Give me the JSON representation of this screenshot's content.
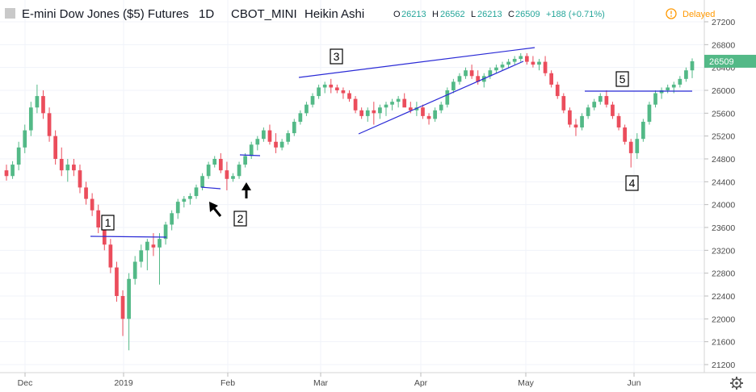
{
  "header": {
    "title": "E-mini Dow Jones ($5) Futures",
    "interval": "1D",
    "exchange": "CBOT_MINI",
    "chart_style": "Heikin Ashi",
    "ohlc": {
      "o_label": "O",
      "o": "26213",
      "h_label": "H",
      "h": "26562",
      "l_label": "L",
      "l": "26213",
      "c_label": "C",
      "c": "26509",
      "change": "+188 (+0.71%)"
    },
    "status": "Delayed",
    "status_icon": "clock-icon"
  },
  "price_axis": {
    "labels": [
      "27200",
      "26800",
      "26400",
      "26000",
      "25600",
      "25200",
      "24800",
      "24400",
      "24000",
      "23600",
      "23200",
      "22800",
      "22400",
      "22000",
      "21600",
      "21200"
    ],
    "last_price": "26509"
  },
  "time_axis": {
    "labels": [
      "Dec",
      "2019",
      "Feb",
      "Mar",
      "Apr",
      "May",
      "Jun"
    ]
  },
  "settings_icon": "gear-icon",
  "colors": {
    "up": "#53b987",
    "down": "#eb4d5c",
    "annotation_line": "#2a2ad6",
    "price_tag": "#53b987"
  },
  "chart_data": {
    "type": "candlestick",
    "style": "Heikin Ashi",
    "ylim": [
      21100,
      27400
    ],
    "x_ticks": [
      "Dec",
      "2019",
      "Feb",
      "Mar",
      "Apr",
      "May",
      "Jun"
    ],
    "bars": [
      [
        24600,
        24700,
        24420,
        24500
      ],
      [
        24500,
        24760,
        24450,
        24700
      ],
      [
        24700,
        25100,
        24600,
        25000
      ],
      [
        25000,
        25400,
        24900,
        25300
      ],
      [
        25300,
        25800,
        25200,
        25700
      ],
      [
        25700,
        26100,
        25600,
        25900
      ],
      [
        25900,
        26000,
        25500,
        25600
      ],
      [
        25600,
        25700,
        25100,
        25200
      ],
      [
        25200,
        25300,
        24700,
        24800
      ],
      [
        24800,
        25000,
        24500,
        24600
      ],
      [
        24600,
        24800,
        24400,
        24700
      ],
      [
        24700,
        24800,
        24500,
        24600
      ],
      [
        24600,
        24700,
        24200,
        24300
      ],
      [
        24300,
        24400,
        24000,
        24100
      ],
      [
        24100,
        24200,
        23800,
        23900
      ],
      [
        23900,
        24000,
        23500,
        23600
      ],
      [
        23600,
        23700,
        23200,
        23300
      ],
      [
        23300,
        23400,
        22800,
        22900
      ],
      [
        22900,
        23000,
        22300,
        22400
      ],
      [
        22400,
        22500,
        21700,
        22000
      ],
      [
        22000,
        22800,
        21450,
        22700
      ],
      [
        22700,
        23100,
        22600,
        23000
      ],
      [
        23000,
        23300,
        22900,
        23200
      ],
      [
        23200,
        23400,
        22850,
        23350
      ],
      [
        23300,
        23500,
        23100,
        23250
      ],
      [
        23250,
        23500,
        22600,
        23400
      ],
      [
        23400,
        23700,
        23300,
        23650
      ],
      [
        23650,
        23900,
        23550,
        23850
      ],
      [
        23850,
        24100,
        23750,
        24050
      ],
      [
        24050,
        24150,
        23950,
        24100
      ],
      [
        24100,
        24200,
        24000,
        24150
      ],
      [
        24150,
        24350,
        24100,
        24300
      ],
      [
        24300,
        24550,
        24250,
        24500
      ],
      [
        24500,
        24750,
        24450,
        24700
      ],
      [
        24700,
        24850,
        24650,
        24800
      ],
      [
        24800,
        24900,
        24550,
        24600
      ],
      [
        24600,
        24750,
        24250,
        24450
      ],
      [
        24450,
        24550,
        24400,
        24500
      ],
      [
        24500,
        24750,
        24450,
        24700
      ],
      [
        24700,
        24900,
        24650,
        24850
      ],
      [
        24850,
        25100,
        24800,
        25050
      ],
      [
        25050,
        25200,
        24950,
        25150
      ],
      [
        25150,
        25350,
        25100,
        25300
      ],
      [
        25300,
        25400,
        25050,
        25100
      ],
      [
        25100,
        25250,
        24900,
        25000
      ],
      [
        25000,
        25150,
        24950,
        25100
      ],
      [
        25100,
        25300,
        25050,
        25250
      ],
      [
        25250,
        25500,
        25200,
        25450
      ],
      [
        25450,
        25650,
        25400,
        25600
      ],
      [
        25600,
        25800,
        25550,
        25750
      ],
      [
        25750,
        25950,
        25700,
        25900
      ],
      [
        25900,
        26100,
        25850,
        26050
      ],
      [
        26050,
        26150,
        25950,
        26100
      ],
      [
        26100,
        26200,
        25950,
        26050
      ],
      [
        26050,
        26100,
        25950,
        26000
      ],
      [
        26000,
        26050,
        25850,
        25950
      ],
      [
        25950,
        26000,
        25800,
        25850
      ],
      [
        25850,
        25900,
        25600,
        25650
      ],
      [
        25650,
        25700,
        25500,
        25550
      ],
      [
        25550,
        25700,
        25450,
        25650
      ],
      [
        25650,
        25800,
        25400,
        25600
      ],
      [
        25600,
        25750,
        25500,
        25700
      ],
      [
        25700,
        25800,
        25550,
        25750
      ],
      [
        25750,
        25850,
        25650,
        25800
      ],
      [
        25800,
        25900,
        25700,
        25850
      ],
      [
        25850,
        25950,
        25750,
        25700
      ],
      [
        25700,
        25800,
        25600,
        25650
      ],
      [
        25650,
        25800,
        25550,
        25700
      ],
      [
        25700,
        25750,
        25500,
        25550
      ],
      [
        25550,
        25600,
        25400,
        25500
      ],
      [
        25500,
        25700,
        25450,
        25650
      ],
      [
        25650,
        25800,
        25600,
        25750
      ],
      [
        25750,
        26050,
        25700,
        26000
      ],
      [
        26000,
        26200,
        25950,
        26150
      ],
      [
        26150,
        26300,
        26100,
        26250
      ],
      [
        26250,
        26400,
        26200,
        26350
      ],
      [
        26350,
        26450,
        26200,
        26250
      ],
      [
        26250,
        26350,
        26100,
        26150
      ],
      [
        26150,
        26300,
        26050,
        26250
      ],
      [
        26250,
        26400,
        26200,
        26350
      ],
      [
        26350,
        26450,
        26300,
        26400
      ],
      [
        26400,
        26500,
        26350,
        26450
      ],
      [
        26450,
        26550,
        26400,
        26500
      ],
      [
        26500,
        26600,
        26450,
        26550
      ],
      [
        26550,
        26650,
        26500,
        26600
      ],
      [
        26600,
        26650,
        26450,
        26500
      ],
      [
        26500,
        26600,
        26400,
        26450
      ],
      [
        26450,
        26550,
        26350,
        26500
      ],
      [
        26500,
        26600,
        26250,
        26300
      ],
      [
        26300,
        26350,
        26050,
        26100
      ],
      [
        26100,
        26150,
        25850,
        25900
      ],
      [
        25900,
        25950,
        25600,
        25650
      ],
      [
        25650,
        25700,
        25350,
        25400
      ],
      [
        25400,
        25500,
        25200,
        25350
      ],
      [
        25350,
        25600,
        25300,
        25550
      ],
      [
        25550,
        25750,
        25500,
        25700
      ],
      [
        25700,
        25850,
        25650,
        25800
      ],
      [
        25800,
        25950,
        25750,
        25900
      ],
      [
        25900,
        26000,
        25700,
        25750
      ],
      [
        25750,
        25800,
        25500,
        25550
      ],
      [
        25550,
        25600,
        25300,
        25350
      ],
      [
        25350,
        25400,
        25050,
        25100
      ],
      [
        25100,
        25150,
        24650,
        24900
      ],
      [
        24900,
        25250,
        24800,
        25150
      ],
      [
        25150,
        25500,
        25100,
        25450
      ],
      [
        25450,
        25800,
        25400,
        25750
      ],
      [
        25750,
        26000,
        25700,
        25950
      ],
      [
        25950,
        26050,
        25850,
        26000
      ],
      [
        26000,
        26100,
        25950,
        26050
      ],
      [
        26050,
        26150,
        25950,
        26100
      ],
      [
        26100,
        26250,
        26050,
        26200
      ],
      [
        26200,
        26400,
        26150,
        26350
      ],
      [
        26350,
        26560,
        26213,
        26509
      ]
    ],
    "annotations": {
      "labels": [
        "1",
        "2",
        "3",
        "4",
        "5"
      ]
    }
  }
}
